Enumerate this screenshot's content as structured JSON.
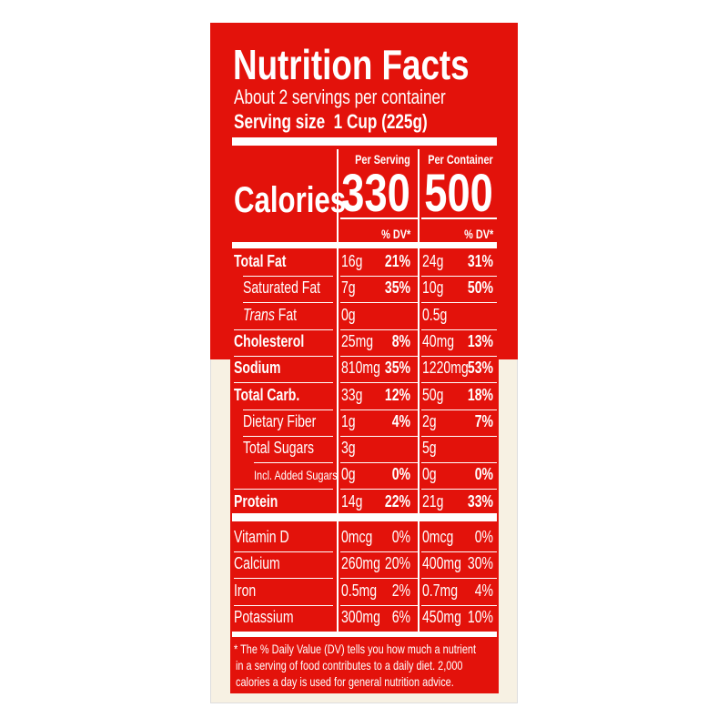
{
  "title": "Nutrition Facts",
  "servings": "About 2 servings per container",
  "serving_size_label": "Serving size",
  "serving_size_value": "1 Cup (225g)",
  "columns": {
    "per_serving": "Per Serving",
    "per_container": "Per Container"
  },
  "calories": {
    "label": "Calories",
    "per_serving": "330",
    "per_container": "500"
  },
  "dv_header": "% DV*",
  "nutrients": [
    {
      "name": "Total Fat",
      "bold": true,
      "indent": 0,
      "s_amt": "16g",
      "s_dv": "21%",
      "c_amt": "24g",
      "c_dv": "31%"
    },
    {
      "name": "Saturated Fat",
      "bold": false,
      "indent": 1,
      "s_amt": "7g",
      "s_dv": "35%",
      "c_amt": "10g",
      "c_dv": "50%"
    },
    {
      "name": "Trans Fat",
      "bold": false,
      "indent": 1,
      "italic_prefix": "Trans",
      "s_amt": "0g",
      "s_dv": "",
      "c_amt": "0.5g",
      "c_dv": ""
    },
    {
      "name": "Cholesterol",
      "bold": true,
      "indent": 0,
      "s_amt": "25mg",
      "s_dv": "8%",
      "c_amt": "40mg",
      "c_dv": "13%"
    },
    {
      "name": "Sodium",
      "bold": true,
      "indent": 0,
      "s_amt": "810mg",
      "s_dv": "35%",
      "c_amt": "1220mg",
      "c_dv": "53%"
    },
    {
      "name": "Total Carb.",
      "bold": true,
      "indent": 0,
      "s_amt": "33g",
      "s_dv": "12%",
      "c_amt": "50g",
      "c_dv": "18%"
    },
    {
      "name": "Dietary Fiber",
      "bold": false,
      "indent": 1,
      "s_amt": "1g",
      "s_dv": "4%",
      "c_amt": "2g",
      "c_dv": "7%"
    },
    {
      "name": "Total Sugars",
      "bold": false,
      "indent": 1,
      "s_amt": "3g",
      "s_dv": "",
      "c_amt": "5g",
      "c_dv": ""
    },
    {
      "name": "Incl. Added Sugars",
      "bold": false,
      "indent": 2,
      "s_amt": "0g",
      "s_dv": "0%",
      "c_amt": "0g",
      "c_dv": "0%"
    },
    {
      "name": "Protein",
      "bold": true,
      "indent": 0,
      "s_amt": "14g",
      "s_dv": "22%",
      "c_amt": "21g",
      "c_dv": "33%"
    }
  ],
  "vitamins": [
    {
      "name": "Vitamin D",
      "s_amt": "0mcg",
      "s_dv": "0%",
      "c_amt": "0mcg",
      "c_dv": "0%"
    },
    {
      "name": "Calcium",
      "s_amt": "260mg",
      "s_dv": "20%",
      "c_amt": "400mg",
      "c_dv": "30%"
    },
    {
      "name": "Iron",
      "s_amt": "0.5mg",
      "s_dv": "2%",
      "c_amt": "0.7mg",
      "c_dv": "4%"
    },
    {
      "name": "Potassium",
      "s_amt": "300mg",
      "s_dv": "6%",
      "c_amt": "450mg",
      "c_dv": "10%"
    }
  ],
  "footnote": [
    "* The % Daily Value (DV) tells you how much a nutrient",
    "in a serving of food contributes to a daily diet. 2,000",
    "calories a day is used for general nutrition advice."
  ],
  "colors": {
    "label_red": "#e3120b",
    "text": "#ffffff",
    "box_cream": "#f7f1e3"
  }
}
